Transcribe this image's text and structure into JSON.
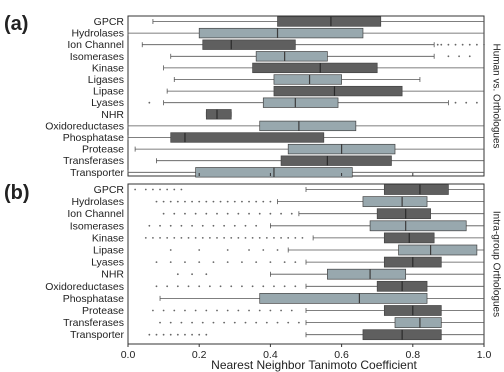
{
  "chart_data": [
    {
      "type": "boxplot",
      "panel_label": "(a)",
      "side_label": "Human vs. Orthologues",
      "categories": [
        "GPCR",
        "Hydrolases",
        "Ion Channel",
        "Isomerases",
        "Kinase",
        "Ligases",
        "Lipase",
        "Lyases",
        "NHR",
        "Oxidoreductases",
        "Phosphatase",
        "Protease",
        "Transferases",
        "Transporter"
      ],
      "boxes": [
        {
          "min": 0.07,
          "q1": 0.42,
          "median": 0.57,
          "q3": 0.71,
          "max": 1.0,
          "dark": true,
          "outliers": []
        },
        {
          "min": 0.0,
          "q1": 0.2,
          "median": 0.42,
          "q3": 0.66,
          "max": 1.0,
          "dark": false,
          "outliers": []
        },
        {
          "min": 0.04,
          "q1": 0.21,
          "median": 0.29,
          "q3": 0.47,
          "max": 0.86,
          "dark": true,
          "outliers": [
            0.87,
            0.88,
            0.9,
            0.92,
            0.94,
            0.96,
            0.98,
            1.0
          ]
        },
        {
          "min": 0.12,
          "q1": 0.36,
          "median": 0.44,
          "q3": 0.56,
          "max": 0.86,
          "dark": false,
          "outliers": [
            0.9,
            0.93,
            0.96
          ]
        },
        {
          "min": 0.1,
          "q1": 0.35,
          "median": 0.54,
          "q3": 0.7,
          "max": 1.0,
          "dark": true,
          "outliers": []
        },
        {
          "min": 0.13,
          "q1": 0.41,
          "median": 0.51,
          "q3": 0.6,
          "max": 0.82,
          "dark": false,
          "outliers": []
        },
        {
          "min": 0.11,
          "q1": 0.41,
          "median": 0.58,
          "q3": 0.77,
          "max": 1.0,
          "dark": true,
          "outliers": []
        },
        {
          "min": 0.1,
          "q1": 0.38,
          "median": 0.47,
          "q3": 0.59,
          "max": 0.9,
          "dark": false,
          "outliers": [
            0.06,
            0.92,
            0.95,
            0.98
          ]
        },
        {
          "min": 0.22,
          "q1": 0.22,
          "median": 0.25,
          "q3": 0.29,
          "max": 0.29,
          "dark": true,
          "outliers": []
        },
        {
          "min": 0.0,
          "q1": 0.37,
          "median": 0.48,
          "q3": 0.64,
          "max": 1.0,
          "dark": false,
          "outliers": []
        },
        {
          "min": 0.0,
          "q1": 0.12,
          "median": 0.16,
          "q3": 0.55,
          "max": 1.0,
          "dark": true,
          "outliers": []
        },
        {
          "min": 0.02,
          "q1": 0.45,
          "median": 0.6,
          "q3": 0.75,
          "max": 1.0,
          "dark": false,
          "outliers": []
        },
        {
          "min": 0.08,
          "q1": 0.43,
          "median": 0.56,
          "q3": 0.74,
          "max": 1.0,
          "dark": true,
          "outliers": []
        },
        {
          "min": 0.0,
          "q1": 0.19,
          "median": 0.41,
          "q3": 0.63,
          "max": 1.0,
          "dark": false,
          "outliers": []
        }
      ]
    },
    {
      "type": "boxplot",
      "panel_label": "(b)",
      "side_label": "Intra-group Orthologues",
      "categories": [
        "GPCR",
        "Hydrolases",
        "Ion Channel",
        "Isomerases",
        "Kinase",
        "Lipase",
        "Lyases",
        "NHR",
        "Oxidoreductases",
        "Phosphatase",
        "Protease",
        "Transferases",
        "Transporter"
      ],
      "xlabel": "Nearest Neighbor Tanimoto Coefficient",
      "xticks": [
        "0.0",
        "0.2",
        "0.4",
        "0.6",
        "0.8",
        "1.0"
      ],
      "xlim": [
        0,
        1
      ],
      "boxes": [
        {
          "min": 0.5,
          "q1": 0.72,
          "median": 0.82,
          "q3": 0.9,
          "max": 1.0,
          "dark": true,
          "outliers": [
            0.02,
            0.05,
            0.07,
            0.09,
            0.11,
            0.13,
            0.15
          ]
        },
        {
          "min": 0.42,
          "q1": 0.66,
          "median": 0.77,
          "q3": 0.84,
          "max": 1.0,
          "dark": false,
          "outliers": [
            0.08,
            0.1,
            0.12,
            0.14,
            0.16,
            0.18,
            0.2,
            0.22,
            0.24,
            0.26,
            0.28,
            0.3,
            0.32,
            0.34,
            0.36,
            0.38,
            0.4
          ]
        },
        {
          "min": 0.48,
          "q1": 0.7,
          "median": 0.78,
          "q3": 0.85,
          "max": 1.0,
          "dark": true,
          "outliers": [
            0.1,
            0.13,
            0.16,
            0.19,
            0.22,
            0.25,
            0.28,
            0.31,
            0.34,
            0.37,
            0.4,
            0.43,
            0.46
          ]
        },
        {
          "min": 0.4,
          "q1": 0.68,
          "median": 0.78,
          "q3": 0.95,
          "max": 1.0,
          "dark": false,
          "outliers": [
            0.06,
            0.09,
            0.12,
            0.15,
            0.18,
            0.21,
            0.24,
            0.27,
            0.3,
            0.33,
            0.36
          ]
        },
        {
          "min": 0.52,
          "q1": 0.72,
          "median": 0.79,
          "q3": 0.86,
          "max": 1.0,
          "dark": true,
          "outliers": [
            0.05,
            0.07,
            0.09,
            0.11,
            0.13,
            0.15,
            0.17,
            0.19,
            0.21,
            0.23,
            0.25,
            0.27,
            0.29,
            0.31,
            0.33,
            0.35,
            0.37,
            0.39,
            0.41,
            0.43,
            0.45,
            0.47,
            0.49
          ]
        },
        {
          "min": 0.45,
          "q1": 0.76,
          "median": 0.85,
          "q3": 0.98,
          "max": 1.0,
          "dark": false,
          "outliers": [
            0.12,
            0.2,
            0.28,
            0.34,
            0.38,
            0.42
          ]
        },
        {
          "min": 0.5,
          "q1": 0.72,
          "median": 0.8,
          "q3": 0.88,
          "max": 1.0,
          "dark": true,
          "outliers": [
            0.08,
            0.12,
            0.16,
            0.2,
            0.24,
            0.28,
            0.32,
            0.36,
            0.4,
            0.44,
            0.47
          ]
        },
        {
          "min": 0.4,
          "q1": 0.56,
          "median": 0.68,
          "q3": 0.78,
          "max": 1.0,
          "dark": false,
          "outliers": [
            0.14,
            0.18,
            0.22
          ]
        },
        {
          "min": 0.5,
          "q1": 0.7,
          "median": 0.77,
          "q3": 0.84,
          "max": 1.0,
          "dark": true,
          "outliers": [
            0.08,
            0.11,
            0.14,
            0.17,
            0.2,
            0.23,
            0.26,
            0.29,
            0.32,
            0.35,
            0.38,
            0.41,
            0.44,
            0.47
          ]
        },
        {
          "min": 0.09,
          "q1": 0.37,
          "median": 0.65,
          "q3": 0.84,
          "max": 1.0,
          "dark": false,
          "outliers": []
        },
        {
          "min": 0.5,
          "q1": 0.72,
          "median": 0.8,
          "q3": 0.88,
          "max": 1.0,
          "dark": true,
          "outliers": [
            0.07,
            0.1,
            0.13,
            0.16,
            0.19,
            0.22,
            0.25,
            0.28,
            0.31,
            0.34,
            0.37,
            0.4,
            0.43,
            0.46
          ]
        },
        {
          "min": 0.5,
          "q1": 0.75,
          "median": 0.82,
          "q3": 0.88,
          "max": 1.0,
          "dark": false,
          "outliers": [
            0.09,
            0.12,
            0.15,
            0.18,
            0.21,
            0.24,
            0.27,
            0.3,
            0.33,
            0.36,
            0.39,
            0.42,
            0.45,
            0.48
          ]
        },
        {
          "min": 0.5,
          "q1": 0.66,
          "median": 0.77,
          "q3": 0.88,
          "max": 1.0,
          "dark": true,
          "outliers": [
            0.06,
            0.08,
            0.1,
            0.12,
            0.14,
            0.16,
            0.18,
            0.2,
            0.22
          ]
        }
      ]
    }
  ],
  "colors": {
    "dark_box": "#5f5f5f",
    "light_box": "#98a8ae",
    "axis": "#333333"
  }
}
